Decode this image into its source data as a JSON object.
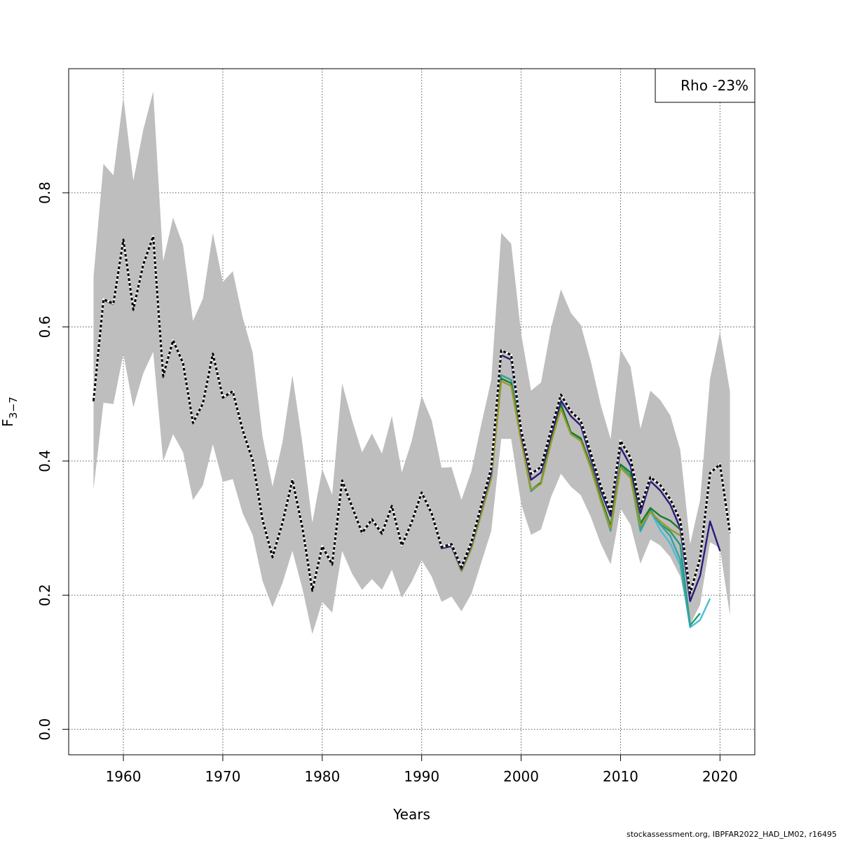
{
  "chart_data": {
    "type": "line",
    "xlabel": "Years",
    "ylabel": "F",
    "ylabel_sub": "3−7",
    "xlim": [
      1954.5,
      2023.5
    ],
    "ylim": [
      -0.038,
      0.985
    ],
    "x_ticks": [
      1960,
      1970,
      1980,
      1990,
      2000,
      2010,
      2020
    ],
    "y_ticks": [
      0.0,
      0.2,
      0.4,
      0.6,
      0.8
    ],
    "y_tick_labels": [
      "0.0",
      "0.2",
      "0.4",
      "0.6",
      "0.8"
    ],
    "grid": true,
    "legend": {
      "position": "top-right",
      "text": "Rho -23%"
    },
    "band": {
      "color": "#bebebe",
      "years": [
        1957,
        1958,
        1959,
        1960,
        1961,
        1962,
        1963,
        1964,
        1965,
        1966,
        1967,
        1968,
        1969,
        1970,
        1971,
        1972,
        1973,
        1974,
        1975,
        1976,
        1977,
        1978,
        1979,
        1980,
        1981,
        1982,
        1983,
        1984,
        1985,
        1986,
        1987,
        1988,
        1989,
        1990,
        1991,
        1992,
        1993,
        1994,
        1995,
        1996,
        1997,
        1998,
        1999,
        2000,
        2001,
        2002,
        2003,
        2004,
        2005,
        2006,
        2007,
        2008,
        2009,
        2010,
        2011,
        2012,
        2013,
        2014,
        2015,
        2016,
        2017,
        2018,
        2019,
        2020,
        2021
      ],
      "upper": [
        0.675,
        0.843,
        0.826,
        0.943,
        0.818,
        0.894,
        0.951,
        0.698,
        0.763,
        0.722,
        0.609,
        0.642,
        0.74,
        0.667,
        0.683,
        0.614,
        0.562,
        0.436,
        0.362,
        0.428,
        0.528,
        0.427,
        0.308,
        0.388,
        0.35,
        0.516,
        0.461,
        0.413,
        0.441,
        0.411,
        0.467,
        0.383,
        0.43,
        0.497,
        0.461,
        0.39,
        0.391,
        0.342,
        0.385,
        0.455,
        0.521,
        0.74,
        0.724,
        0.59,
        0.505,
        0.517,
        0.598,
        0.656,
        0.621,
        0.603,
        0.549,
        0.484,
        0.433,
        0.566,
        0.541,
        0.448,
        0.505,
        0.491,
        0.468,
        0.417,
        0.276,
        0.342,
        0.523,
        0.593,
        0.504
      ],
      "lower": [
        0.358,
        0.487,
        0.485,
        0.56,
        0.48,
        0.531,
        0.563,
        0.4,
        0.44,
        0.413,
        0.342,
        0.364,
        0.425,
        0.369,
        0.373,
        0.322,
        0.29,
        0.221,
        0.182,
        0.218,
        0.266,
        0.21,
        0.142,
        0.19,
        0.174,
        0.266,
        0.232,
        0.208,
        0.224,
        0.208,
        0.238,
        0.196,
        0.22,
        0.252,
        0.228,
        0.19,
        0.198,
        0.176,
        0.202,
        0.249,
        0.296,
        0.433,
        0.433,
        0.336,
        0.29,
        0.298,
        0.346,
        0.381,
        0.362,
        0.349,
        0.317,
        0.277,
        0.246,
        0.329,
        0.305,
        0.247,
        0.283,
        0.274,
        0.257,
        0.228,
        0.156,
        0.186,
        0.279,
        0.27,
        0.17
      ]
    },
    "series": [
      {
        "color": "#4dbbd5",
        "end": 2019,
        "values": [
          0.489,
          0.64,
          0.634,
          0.729,
          0.625,
          0.692,
          0.734,
          0.525,
          0.579,
          0.545,
          0.456,
          0.485,
          0.559,
          0.494,
          0.503,
          0.445,
          0.4,
          0.311,
          0.256,
          0.307,
          0.371,
          0.3,
          0.206,
          0.272,
          0.245,
          0.37,
          0.331,
          0.292,
          0.312,
          0.291,
          0.332,
          0.273,
          0.308,
          0.352,
          0.321,
          0.27,
          0.273,
          0.236,
          0.27,
          0.322,
          0.375,
          0.528,
          0.521,
          0.432,
          0.355,
          0.367,
          0.429,
          0.486,
          0.441,
          0.433,
          0.393,
          0.343,
          0.296,
          0.394,
          0.377,
          0.295,
          0.325,
          0.297,
          0.277,
          0.245,
          0.152,
          0.163,
          0.195
        ]
      },
      {
        "color": "#1b9e77",
        "end": 2018,
        "values": [
          0.489,
          0.64,
          0.634,
          0.729,
          0.625,
          0.692,
          0.734,
          0.525,
          0.579,
          0.545,
          0.456,
          0.485,
          0.559,
          0.494,
          0.503,
          0.445,
          0.4,
          0.311,
          0.256,
          0.307,
          0.371,
          0.3,
          0.206,
          0.272,
          0.245,
          0.37,
          0.331,
          0.292,
          0.312,
          0.291,
          0.332,
          0.273,
          0.308,
          0.352,
          0.321,
          0.27,
          0.273,
          0.236,
          0.27,
          0.322,
          0.375,
          0.528,
          0.521,
          0.432,
          0.355,
          0.367,
          0.429,
          0.484,
          0.442,
          0.433,
          0.393,
          0.343,
          0.298,
          0.394,
          0.378,
          0.298,
          0.327,
          0.306,
          0.295,
          0.275,
          0.155,
          0.173
        ]
      },
      {
        "color": "#3aa1a1",
        "end": 2017,
        "values": [
          0.489,
          0.64,
          0.634,
          0.729,
          0.625,
          0.692,
          0.734,
          0.525,
          0.579,
          0.545,
          0.456,
          0.485,
          0.559,
          0.494,
          0.503,
          0.445,
          0.4,
          0.311,
          0.256,
          0.307,
          0.371,
          0.3,
          0.206,
          0.272,
          0.245,
          0.37,
          0.331,
          0.292,
          0.312,
          0.291,
          0.332,
          0.273,
          0.308,
          0.352,
          0.321,
          0.27,
          0.273,
          0.236,
          0.27,
          0.322,
          0.375,
          0.528,
          0.521,
          0.432,
          0.355,
          0.367,
          0.429,
          0.484,
          0.442,
          0.433,
          0.393,
          0.343,
          0.296,
          0.394,
          0.377,
          0.296,
          0.325,
          0.305,
          0.288,
          0.253,
          0.153
        ]
      },
      {
        "color": "#1a7a2e",
        "end": 2016,
        "values": [
          0.489,
          0.64,
          0.634,
          0.729,
          0.625,
          0.692,
          0.734,
          0.525,
          0.579,
          0.545,
          0.456,
          0.485,
          0.559,
          0.494,
          0.503,
          0.445,
          0.4,
          0.311,
          0.256,
          0.307,
          0.371,
          0.3,
          0.206,
          0.272,
          0.245,
          0.37,
          0.331,
          0.292,
          0.312,
          0.291,
          0.332,
          0.273,
          0.308,
          0.352,
          0.321,
          0.27,
          0.273,
          0.236,
          0.27,
          0.322,
          0.375,
          0.523,
          0.516,
          0.436,
          0.357,
          0.368,
          0.433,
          0.485,
          0.443,
          0.434,
          0.394,
          0.346,
          0.303,
          0.395,
          0.383,
          0.307,
          0.33,
          0.318,
          0.311,
          0.298
        ]
      },
      {
        "color": "#9a9a28",
        "end": 2016,
        "values": [
          0.489,
          0.64,
          0.634,
          0.729,
          0.625,
          0.692,
          0.734,
          0.525,
          0.579,
          0.545,
          0.456,
          0.485,
          0.559,
          0.494,
          0.503,
          0.445,
          0.4,
          0.311,
          0.256,
          0.307,
          0.371,
          0.3,
          0.206,
          0.272,
          0.245,
          0.37,
          0.331,
          0.292,
          0.312,
          0.291,
          0.332,
          0.273,
          0.308,
          0.352,
          0.321,
          0.27,
          0.273,
          0.236,
          0.27,
          0.322,
          0.375,
          0.519,
          0.512,
          0.43,
          0.357,
          0.366,
          0.427,
          0.478,
          0.44,
          0.43,
          0.39,
          0.341,
          0.299,
          0.39,
          0.375,
          0.303,
          0.324,
          0.31,
          0.298,
          0.289
        ]
      },
      {
        "color": "#2b1a7a",
        "end": 2020,
        "values": [
          0.489,
          0.64,
          0.634,
          0.729,
          0.625,
          0.692,
          0.734,
          0.525,
          0.579,
          0.545,
          0.456,
          0.485,
          0.559,
          0.494,
          0.503,
          0.445,
          0.4,
          0.311,
          0.256,
          0.307,
          0.371,
          0.3,
          0.206,
          0.272,
          0.245,
          0.37,
          0.331,
          0.292,
          0.312,
          0.291,
          0.332,
          0.273,
          0.308,
          0.352,
          0.321,
          0.27,
          0.273,
          0.239,
          0.275,
          0.33,
          0.383,
          0.558,
          0.551,
          0.44,
          0.372,
          0.383,
          0.438,
          0.49,
          0.467,
          0.453,
          0.404,
          0.356,
          0.318,
          0.42,
          0.393,
          0.322,
          0.37,
          0.356,
          0.335,
          0.3,
          0.191,
          0.229,
          0.31,
          0.266
        ]
      },
      {
        "color": "#000000",
        "dashed": true,
        "end": 2021,
        "values": [
          0.49,
          0.641,
          0.635,
          0.73,
          0.626,
          0.693,
          0.735,
          0.527,
          0.58,
          0.546,
          0.457,
          0.486,
          0.56,
          0.495,
          0.504,
          0.446,
          0.401,
          0.312,
          0.257,
          0.308,
          0.372,
          0.301,
          0.207,
          0.273,
          0.246,
          0.371,
          0.332,
          0.293,
          0.313,
          0.292,
          0.333,
          0.274,
          0.309,
          0.353,
          0.322,
          0.272,
          0.276,
          0.242,
          0.279,
          0.335,
          0.39,
          0.565,
          0.558,
          0.446,
          0.381,
          0.391,
          0.446,
          0.499,
          0.474,
          0.46,
          0.412,
          0.363,
          0.325,
          0.43,
          0.405,
          0.331,
          0.376,
          0.364,
          0.343,
          0.312,
          0.203,
          0.255,
          0.382,
          0.395,
          0.293
        ]
      }
    ]
  },
  "footer": "stockassessment.org, IBPFAR2022_HAD_LM02, r16495"
}
